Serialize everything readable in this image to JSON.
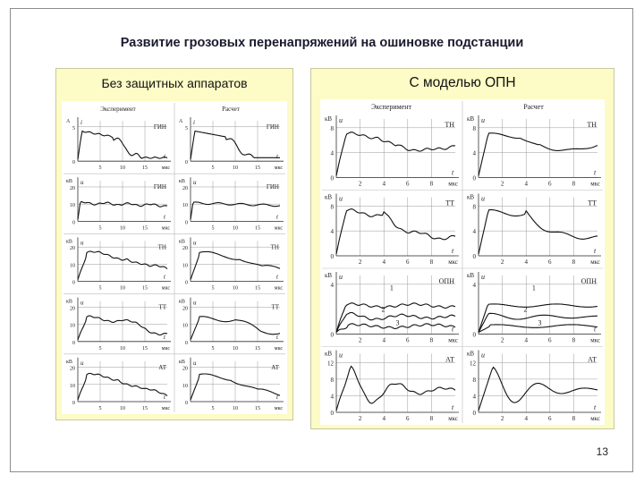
{
  "slide": {
    "title": "Развитие грозовых перенапряжений на ошиновке подстанции",
    "page_number": "13"
  },
  "left_panel": {
    "label": "Без защитных аппаратов",
    "figure": {
      "col_headers": [
        "Эксперимент",
        "Расчет"
      ],
      "x_ticks": [
        "5",
        "10",
        "15"
      ],
      "x_unit": "мкс",
      "rows": [
        {
          "tag": "ГИН",
          "y_unit": "А",
          "y_var": "i",
          "y_ticks": [
            "5",
            "0"
          ]
        },
        {
          "tag": "ГИН",
          "y_unit": "кВ",
          "y_var": "u",
          "y_ticks": [
            "20",
            "10",
            "0"
          ]
        },
        {
          "tag": "ТН",
          "y_unit": "кВ",
          "y_var": "u",
          "y_ticks": [
            "20",
            "10",
            "0"
          ]
        },
        {
          "tag": "ТТ",
          "y_unit": "кВ",
          "y_var": "u",
          "y_ticks": [
            "20",
            "10",
            "0"
          ]
        },
        {
          "tag": "АТ",
          "y_unit": "кВ",
          "y_var": "u",
          "y_ticks": [
            "20",
            "10",
            "0"
          ]
        }
      ]
    }
  },
  "right_panel": {
    "label": "С моделью ОПН",
    "figure": {
      "col_headers": [
        "Эксперимент",
        "Расчет"
      ],
      "x_ticks": [
        "2",
        "4",
        "6",
        "8"
      ],
      "x_unit": "мкс",
      "rows": [
        {
          "tag": "ТН",
          "y_unit": "кВ",
          "y_var": "u",
          "y_ticks": [
            "8",
            "4",
            "0"
          ]
        },
        {
          "tag": "ТТ",
          "y_unit": "кВ",
          "y_var": "u",
          "y_ticks": [
            "8",
            "4",
            "0"
          ]
        },
        {
          "tag": "ОПН",
          "y_unit": "кВ",
          "y_var": "u",
          "y_ticks": [
            "4",
            "0"
          ],
          "curve_labels": [
            "1",
            "2",
            "3"
          ]
        },
        {
          "tag": "АТ",
          "y_unit": "кВ",
          "y_var": "u",
          "y_ticks": [
            "12",
            "8",
            "4",
            "0"
          ]
        }
      ]
    }
  }
}
